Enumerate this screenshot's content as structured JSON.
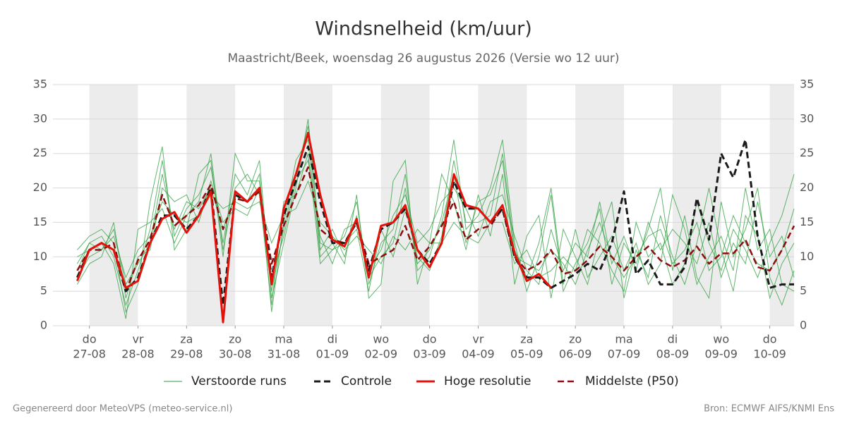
{
  "chart_data": {
    "type": "line",
    "title": "Windsnelheid (km/uur)",
    "subtitle": "Maastricht/Beek, woensdag 26 augustus 2026 (Versie wo 12 uur)",
    "footer_left": "Gegenereerd door MeteoVPS (meteo-service.nl)",
    "footer_right": "Bron: ECMWF AIFS/KNMI Ens",
    "xlim": [
      -0.75,
      14.5
    ],
    "xticks": [
      0,
      1,
      2,
      3,
      4,
      5,
      6,
      7,
      8,
      9,
      10,
      11,
      12,
      13,
      14
    ],
    "xtick_days": [
      "do",
      "vr",
      "za",
      "zo",
      "ma",
      "di",
      "wo",
      "do",
      "vr",
      "za",
      "zo",
      "ma",
      "di",
      "wo",
      "do"
    ],
    "xtick_dates": [
      "27-08",
      "28-08",
      "29-08",
      "30-08",
      "31-08",
      "01-09",
      "02-09",
      "03-09",
      "04-09",
      "05-09",
      "06-09",
      "07-09",
      "08-09",
      "09-09",
      "10-09"
    ],
    "ylim": [
      0,
      35
    ],
    "yticks": [
      0,
      5,
      10,
      15,
      20,
      25,
      30,
      35
    ],
    "grid": true,
    "x": [
      -0.25,
      0,
      0.25,
      0.5,
      0.75,
      1,
      1.25,
      1.5,
      1.75,
      2,
      2.25,
      2.5,
      2.75,
      3,
      3.25,
      3.5,
      3.75,
      4,
      4.25,
      4.5,
      4.75,
      5,
      5.25,
      5.5,
      5.75,
      6,
      6.25,
      6.5,
      6.75,
      7,
      7.25,
      7.5,
      7.75,
      8,
      8.25,
      8.5,
      8.75,
      9,
      9.25,
      9.5,
      9.75,
      10,
      10.25,
      10.5,
      10.75,
      11,
      11.25,
      11.5,
      11.75,
      12,
      12.25,
      12.5,
      12.75,
      13,
      13.25,
      13.5,
      13.75,
      14,
      14.25,
      14.5
    ],
    "ensemble": {
      "name": "Verstoorde runs",
      "color": "#2e9e3e",
      "members": [
        [
          9,
          12,
          13,
          10,
          3,
          8,
          14,
          24,
          13,
          17,
          19,
          23,
          12,
          22,
          19,
          24,
          4,
          12,
          20,
          30,
          12,
          11,
          13,
          18,
          6,
          12,
          14,
          22,
          8,
          10,
          16,
          27,
          14,
          16,
          20,
          27,
          12,
          5,
          10,
          19,
          5,
          9,
          12,
          17,
          6,
          12,
          9,
          14,
          20,
          8,
          16,
          7,
          4,
          18,
          10,
          14,
          20,
          7,
          3,
          8
        ],
        [
          7,
          10,
          11,
          13,
          7,
          11,
          13,
          18,
          16,
          15,
          16,
          19,
          17,
          18,
          17,
          18,
          12,
          16,
          17,
          21,
          15,
          13,
          11,
          13,
          11,
          9,
          13,
          11,
          14,
          12,
          12,
          15,
          13,
          12,
          15,
          15,
          9,
          11,
          7,
          8,
          10,
          8,
          14,
          12,
          8,
          5,
          15,
          10,
          12,
          6,
          9,
          18,
          12,
          8,
          14,
          11,
          7,
          12,
          16,
          22
        ],
        [
          11,
          13,
          14,
          12,
          2,
          6,
          18,
          26,
          11,
          14,
          22,
          24,
          10,
          25,
          21,
          21,
          2,
          15,
          24,
          27,
          10,
          12,
          9,
          19,
          4,
          6,
          21,
          24,
          6,
          12,
          22,
          18,
          11,
          19,
          13,
          22,
          6,
          13,
          16,
          4,
          14,
          10,
          6,
          13,
          18,
          4,
          11,
          7,
          16,
          10,
          6,
          12,
          20,
          11,
          5,
          16,
          13,
          4,
          9,
          12
        ],
        [
          6,
          9,
          10,
          15,
          4,
          10,
          11,
          20,
          18,
          19,
          15,
          21,
          15,
          17,
          16,
          20,
          7,
          13,
          21,
          24,
          13,
          9,
          14,
          15,
          8,
          11,
          16,
          19,
          12,
          14,
          18,
          20,
          17,
          13,
          18,
          19,
          13,
          8,
          6,
          14,
          8,
          12,
          10,
          18,
          9,
          13,
          8,
          15,
          11,
          14,
          12,
          9,
          15,
          7,
          12,
          9,
          18,
          10,
          13,
          7
        ],
        [
          10,
          11,
          12,
          9,
          1,
          14,
          15,
          17,
          12,
          16,
          18,
          25,
          11,
          20,
          22,
          19,
          3,
          18,
          19,
          25,
          9,
          11,
          12,
          14,
          5,
          14,
          10,
          17,
          10,
          8,
          13,
          24,
          15,
          15,
          16,
          25,
          11,
          7,
          12,
          20,
          6,
          14,
          7,
          10,
          13,
          8,
          12,
          6,
          9,
          19,
          14,
          6,
          10,
          13,
          8,
          20,
          11,
          14,
          6,
          5
        ],
        [
          8,
          12,
          11,
          14,
          6,
          9,
          12,
          22,
          14,
          18,
          17,
          20,
          14,
          19,
          18,
          22,
          5,
          14,
          22,
          29,
          11,
          14,
          10,
          16,
          7,
          10,
          12,
          20,
          9,
          11,
          15,
          22,
          12,
          18,
          19,
          24,
          10,
          9,
          8,
          11,
          9,
          6,
          11,
          15,
          10,
          7,
          10,
          13,
          14,
          9,
          11,
          15,
          8,
          10,
          16,
          12,
          9,
          8,
          11,
          17
        ]
      ]
    },
    "series": [
      {
        "name": "Controle",
        "color": "#1a1a1a",
        "dashed": true,
        "width": 3,
        "values": [
          7,
          11,
          12,
          11,
          5,
          7,
          12,
          16,
          16,
          14,
          16,
          20,
          3,
          19,
          18,
          20,
          7,
          16,
          21,
          26,
          18,
          12,
          12,
          15,
          8,
          14,
          15,
          17,
          11,
          9,
          12,
          21,
          17,
          17,
          15,
          17,
          10,
          7,
          7,
          5.5,
          6.5,
          7.5,
          9,
          8,
          12,
          19.5,
          7.5,
          9.5,
          6,
          6,
          8.5,
          18.5,
          12.5,
          25,
          21.5,
          27,
          13,
          5.5,
          6,
          6
        ]
      },
      {
        "name": "Hoge resolutie",
        "color": "#e3120b",
        "dashed": false,
        "width": 3,
        "values": [
          6.5,
          11,
          12,
          11,
          5.5,
          6.5,
          12,
          15.5,
          16.5,
          13.5,
          16,
          19.5,
          0.5,
          19.5,
          18,
          20,
          6,
          17,
          22,
          28,
          19,
          12.5,
          11.5,
          15.5,
          7,
          14.5,
          15,
          17.5,
          11,
          8.5,
          12,
          22,
          17.5,
          17,
          15,
          17.5,
          10.5,
          6.5,
          7.5,
          5.5,
          null,
          null,
          null,
          null,
          null,
          null,
          null,
          null,
          null,
          null,
          null,
          null,
          null,
          null,
          null,
          null,
          null,
          null,
          null,
          null
        ]
      },
      {
        "name": "Middelste (P50)",
        "color": "#8b0d0d",
        "dashed": true,
        "width": 2.5,
        "values": [
          8,
          11,
          11,
          12,
          5,
          9.5,
          12.5,
          19,
          14.5,
          16,
          17.5,
          20.5,
          14,
          18.5,
          18,
          19.5,
          9,
          14.5,
          19,
          23,
          14,
          12.5,
          12,
          15,
          9,
          10,
          11,
          14.5,
          9.5,
          11.5,
          14.5,
          18,
          12.5,
          14,
          14.5,
          17,
          10,
          8,
          9,
          11,
          7.5,
          8,
          9.5,
          11.5,
          10,
          8,
          10,
          11.5,
          9.5,
          8.5,
          9.5,
          11.5,
          9,
          10.5,
          10.5,
          12.5,
          8.5,
          8,
          11,
          14.5
        ]
      }
    ]
  }
}
